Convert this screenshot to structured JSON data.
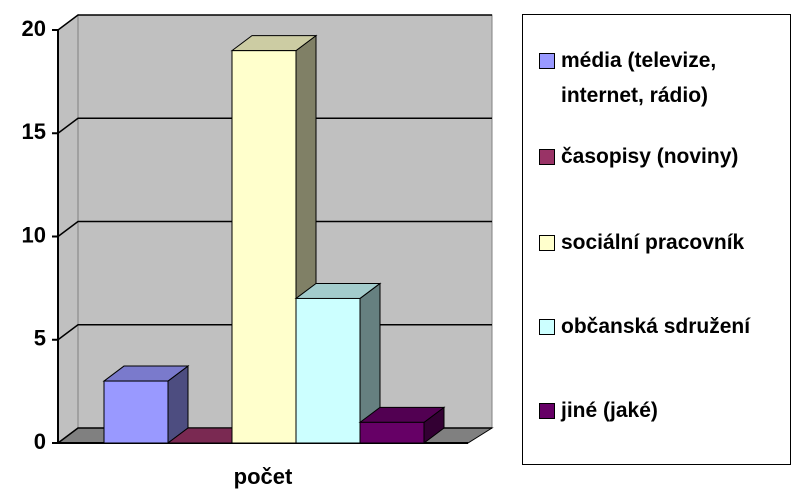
{
  "chart_data": {
    "type": "bar3d",
    "categories": [
      "počet"
    ],
    "series": [
      {
        "name": "média (televize, internet, rádio)",
        "color": "#9999ff",
        "values": [
          3
        ]
      },
      {
        "name": "časopisy (noviny)",
        "color": "#993366",
        "values": [
          0
        ]
      },
      {
        "name": "sociální pracovník",
        "color": "#ffffcc",
        "values": [
          19
        ]
      },
      {
        "name": "občanská sdružení",
        "color": "#ccffff",
        "values": [
          7
        ]
      },
      {
        "name": "jiné (jaké)",
        "color": "#660066",
        "values": [
          1
        ]
      }
    ],
    "ylim": [
      0,
      20
    ],
    "yticks": [
      0,
      5,
      10,
      15,
      20
    ],
    "grid": true,
    "legend": "right"
  }
}
